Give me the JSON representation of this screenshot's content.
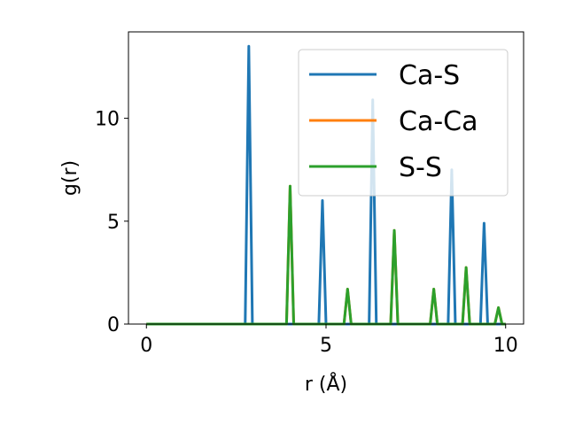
{
  "chart_data": {
    "type": "line",
    "xlabel": "r (Å)",
    "ylabel": "g(r)",
    "xlim": [
      -0.5,
      10.5
    ],
    "ylim": [
      0,
      14.2
    ],
    "xticks": [
      0,
      5,
      10
    ],
    "yticks": [
      0,
      5,
      10
    ],
    "grid": false,
    "legend_position": "top-right",
    "series": [
      {
        "name": "Ca-S",
        "color": "#1f77b4",
        "peaks": [
          [
            2.85,
            13.5
          ],
          [
            4.9,
            6.0
          ],
          [
            6.3,
            10.9
          ],
          [
            8.5,
            7.5
          ],
          [
            9.4,
            4.9
          ]
        ]
      },
      {
        "name": "Ca-Ca",
        "color": "#ff7f0e",
        "peaks": [
          [
            4.0,
            6.7
          ],
          [
            5.6,
            1.7
          ],
          [
            6.9,
            4.55
          ],
          [
            8.0,
            1.7
          ],
          [
            8.9,
            2.75
          ],
          [
            9.8,
            0.8
          ]
        ]
      },
      {
        "name": "S-S",
        "color": "#2ca02c",
        "peaks": [
          [
            4.0,
            6.7
          ],
          [
            5.6,
            1.7
          ],
          [
            6.9,
            4.55
          ],
          [
            8.0,
            1.7
          ],
          [
            8.9,
            2.75
          ],
          [
            9.8,
            0.8
          ]
        ]
      }
    ],
    "x_range": [
      0,
      10
    ]
  }
}
